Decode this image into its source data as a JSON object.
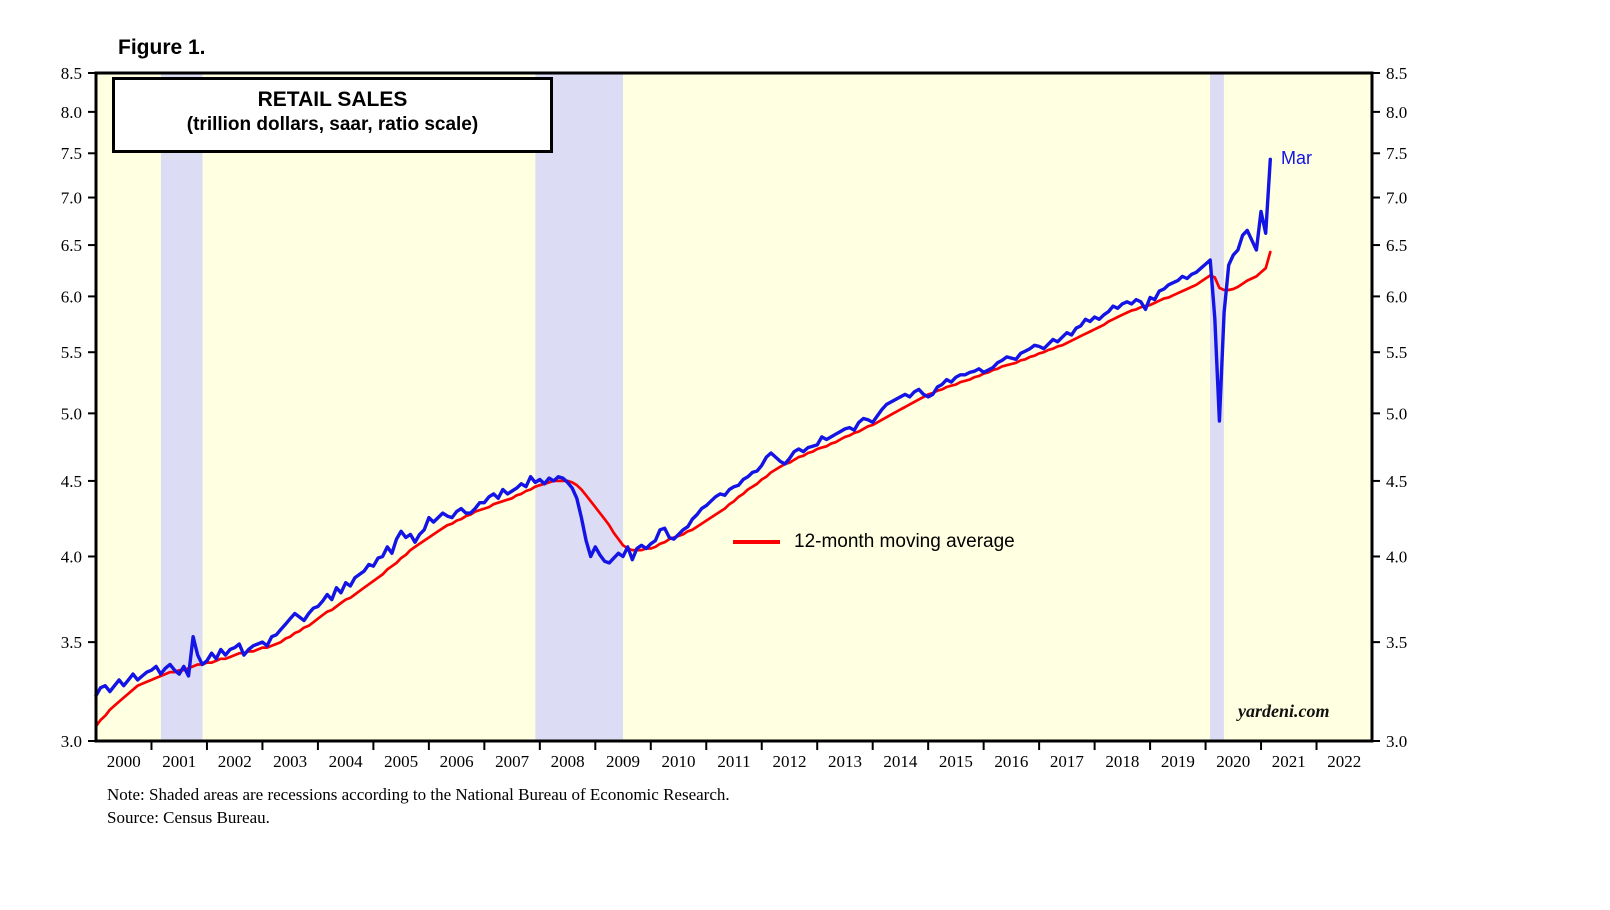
{
  "figure_label": "Figure 1.",
  "chart": {
    "title_line1": "RETAIL SALES",
    "title_line2": "(trillion dollars, saar, ratio scale)",
    "legend_label": "12-month moving average",
    "end_label": "Mar",
    "watermark": "yardeni.com"
  },
  "footer": {
    "note": "Note: Shaded areas are recessions according to the National Bureau of Economic Research.",
    "source": "Source: Census Bureau."
  },
  "chart_data": {
    "type": "line",
    "title": "RETAIL SALES (trillion dollars, saar, ratio scale)",
    "xlabel": "",
    "ylabel": "trillion dollars, saar",
    "y_scale": "log",
    "ylim": [
      3.0,
      8.5
    ],
    "y_tick_labels": [
      "3.0",
      "3.5",
      "4.0",
      "4.5",
      "5.0",
      "5.5",
      "6.0",
      "6.5",
      "7.0",
      "7.5",
      "8.0",
      "8.5"
    ],
    "x_domain": [
      2000,
      2023
    ],
    "x_years": [
      2000,
      2001,
      2002,
      2003,
      2004,
      2005,
      2006,
      2007,
      2008,
      2009,
      2010,
      2011,
      2012,
      2013,
      2014,
      2015,
      2016,
      2017,
      2018,
      2019,
      2020,
      2021,
      2022
    ],
    "x_start_year": 2000,
    "x_step": "monthly",
    "legend_position": "center-right of plot",
    "grid": false,
    "recessions": [
      [
        2001.17,
        2001.92
      ],
      [
        2007.92,
        2009.5
      ],
      [
        2020.08,
        2020.33
      ]
    ],
    "colors": {
      "plot_bg": "#ffffe1",
      "recession_band": "#dcdcf4",
      "retail_sales_line": "#1414e6",
      "moving_average_line": "#fa0000",
      "axis": "#000000"
    },
    "series": [
      {
        "name": "Retail sales",
        "color": "#1414e6",
        "values": [
          3.22,
          3.26,
          3.27,
          3.24,
          3.27,
          3.3,
          3.27,
          3.3,
          3.33,
          3.3,
          3.32,
          3.34,
          3.35,
          3.37,
          3.33,
          3.36,
          3.38,
          3.35,
          3.33,
          3.37,
          3.32,
          3.53,
          3.43,
          3.38,
          3.4,
          3.44,
          3.41,
          3.46,
          3.43,
          3.46,
          3.47,
          3.49,
          3.43,
          3.46,
          3.48,
          3.49,
          3.5,
          3.48,
          3.53,
          3.54,
          3.57,
          3.6,
          3.63,
          3.66,
          3.64,
          3.62,
          3.66,
          3.69,
          3.7,
          3.73,
          3.77,
          3.74,
          3.81,
          3.78,
          3.84,
          3.82,
          3.87,
          3.89,
          3.91,
          3.95,
          3.94,
          3.99,
          4.0,
          4.06,
          4.02,
          4.11,
          4.16,
          4.12,
          4.14,
          4.09,
          4.14,
          4.17,
          4.25,
          4.22,
          4.25,
          4.28,
          4.26,
          4.25,
          4.29,
          4.31,
          4.28,
          4.28,
          4.31,
          4.35,
          4.35,
          4.39,
          4.41,
          4.38,
          4.44,
          4.41,
          4.43,
          4.45,
          4.48,
          4.46,
          4.53,
          4.49,
          4.51,
          4.48,
          4.52,
          4.5,
          4.53,
          4.52,
          4.49,
          4.45,
          4.38,
          4.25,
          4.1,
          4.0,
          4.06,
          4.01,
          3.97,
          3.96,
          3.99,
          4.02,
          4.0,
          4.06,
          3.98,
          4.05,
          4.07,
          4.05,
          4.08,
          4.1,
          4.17,
          4.18,
          4.12,
          4.11,
          4.14,
          4.17,
          4.19,
          4.24,
          4.27,
          4.31,
          4.33,
          4.36,
          4.39,
          4.41,
          4.4,
          4.44,
          4.46,
          4.47,
          4.51,
          4.53,
          4.56,
          4.57,
          4.61,
          4.67,
          4.7,
          4.67,
          4.64,
          4.62,
          4.66,
          4.71,
          4.73,
          4.71,
          4.74,
          4.75,
          4.76,
          4.82,
          4.8,
          4.82,
          4.84,
          4.86,
          4.88,
          4.89,
          4.87,
          4.93,
          4.96,
          4.95,
          4.93,
          4.98,
          5.03,
          5.07,
          5.09,
          5.11,
          5.13,
          5.15,
          5.13,
          5.17,
          5.19,
          5.15,
          5.13,
          5.15,
          5.21,
          5.23,
          5.27,
          5.25,
          5.29,
          5.31,
          5.31,
          5.33,
          5.34,
          5.36,
          5.33,
          5.35,
          5.37,
          5.41,
          5.43,
          5.46,
          5.45,
          5.44,
          5.49,
          5.51,
          5.53,
          5.56,
          5.55,
          5.53,
          5.57,
          5.61,
          5.59,
          5.63,
          5.67,
          5.65,
          5.71,
          5.73,
          5.79,
          5.77,
          5.81,
          5.79,
          5.83,
          5.86,
          5.91,
          5.89,
          5.93,
          5.95,
          5.93,
          5.97,
          5.95,
          5.88,
          5.99,
          5.97,
          6.05,
          6.07,
          6.11,
          6.13,
          6.15,
          6.19,
          6.17,
          6.21,
          6.23,
          6.27,
          6.31,
          6.35,
          5.8,
          4.94,
          5.85,
          6.3,
          6.4,
          6.45,
          6.6,
          6.65,
          6.55,
          6.45,
          6.85,
          6.62,
          7.43
        ]
      },
      {
        "name": "12-month moving average",
        "color": "#fa0000",
        "values": [
          3.07,
          3.1,
          3.12,
          3.15,
          3.17,
          3.19,
          3.21,
          3.23,
          3.25,
          3.27,
          3.28,
          3.29,
          3.3,
          3.31,
          3.32,
          3.33,
          3.34,
          3.34,
          3.35,
          3.35,
          3.36,
          3.37,
          3.38,
          3.38,
          3.39,
          3.39,
          3.4,
          3.41,
          3.41,
          3.42,
          3.43,
          3.44,
          3.44,
          3.45,
          3.45,
          3.46,
          3.47,
          3.47,
          3.48,
          3.49,
          3.5,
          3.52,
          3.53,
          3.55,
          3.56,
          3.58,
          3.59,
          3.61,
          3.63,
          3.65,
          3.67,
          3.68,
          3.7,
          3.72,
          3.74,
          3.75,
          3.77,
          3.79,
          3.81,
          3.83,
          3.85,
          3.87,
          3.89,
          3.92,
          3.94,
          3.96,
          3.99,
          4.01,
          4.04,
          4.06,
          4.08,
          4.1,
          4.12,
          4.14,
          4.16,
          4.18,
          4.2,
          4.21,
          4.23,
          4.24,
          4.26,
          4.27,
          4.29,
          4.3,
          4.31,
          4.32,
          4.34,
          4.35,
          4.36,
          4.37,
          4.38,
          4.4,
          4.41,
          4.43,
          4.44,
          4.46,
          4.47,
          4.48,
          4.49,
          4.5,
          4.5,
          4.5,
          4.5,
          4.49,
          4.47,
          4.44,
          4.4,
          4.36,
          4.32,
          4.28,
          4.24,
          4.2,
          4.15,
          4.11,
          4.07,
          4.05,
          4.04,
          4.04,
          4.04,
          4.05,
          4.05,
          4.06,
          4.08,
          4.09,
          4.11,
          4.12,
          4.13,
          4.14,
          4.16,
          4.17,
          4.19,
          4.21,
          4.23,
          4.25,
          4.27,
          4.29,
          4.31,
          4.34,
          4.36,
          4.39,
          4.41,
          4.44,
          4.46,
          4.48,
          4.51,
          4.53,
          4.56,
          4.58,
          4.6,
          4.62,
          4.63,
          4.65,
          4.67,
          4.68,
          4.7,
          4.71,
          4.73,
          4.74,
          4.75,
          4.77,
          4.78,
          4.8,
          4.82,
          4.83,
          4.85,
          4.86,
          4.88,
          4.9,
          4.91,
          4.93,
          4.95,
          4.97,
          4.99,
          5.01,
          5.03,
          5.05,
          5.07,
          5.09,
          5.11,
          5.13,
          5.15,
          5.16,
          5.18,
          5.19,
          5.21,
          5.22,
          5.23,
          5.25,
          5.26,
          5.27,
          5.29,
          5.3,
          5.32,
          5.33,
          5.35,
          5.36,
          5.38,
          5.39,
          5.4,
          5.41,
          5.43,
          5.44,
          5.46,
          5.47,
          5.49,
          5.5,
          5.52,
          5.53,
          5.55,
          5.56,
          5.58,
          5.6,
          5.62,
          5.64,
          5.66,
          5.68,
          5.7,
          5.72,
          5.74,
          5.77,
          5.79,
          5.81,
          5.83,
          5.85,
          5.87,
          5.88,
          5.9,
          5.91,
          5.92,
          5.94,
          5.96,
          5.98,
          5.99,
          6.01,
          6.03,
          6.05,
          6.07,
          6.09,
          6.11,
          6.14,
          6.17,
          6.2,
          6.18,
          6.08,
          6.06,
          6.06,
          6.07,
          6.09,
          6.12,
          6.15,
          6.17,
          6.19,
          6.23,
          6.27,
          6.43
        ]
      }
    ]
  }
}
